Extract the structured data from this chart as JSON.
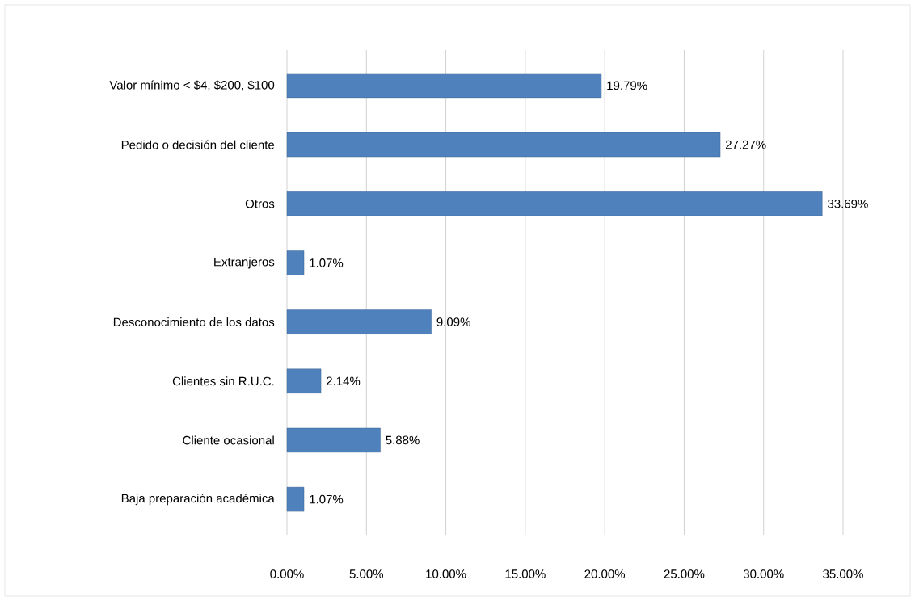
{
  "chart_data": {
    "type": "bar",
    "orientation": "horizontal",
    "categories": [
      "Valor mínimo < $4, $200, $100",
      "Pedido o decisión del cliente",
      "Otros",
      "Extranjeros",
      "Desconocimiento de los datos",
      "Clientes sin R.U.C.",
      "Cliente ocasional",
      "Baja preparación académica"
    ],
    "values": [
      19.79,
      27.27,
      33.69,
      1.07,
      9.09,
      2.14,
      5.88,
      1.07
    ],
    "value_labels": [
      "19.79%",
      "27.27%",
      "33.69%",
      "1.07%",
      "9.09%",
      "2.14%",
      "5.88%",
      "1.07%"
    ],
    "color": "#4f81bd",
    "xlim": [
      0,
      35
    ],
    "xticks": [
      {
        "value": 0,
        "label": "0.00%"
      },
      {
        "value": 5,
        "label": "5.00%"
      },
      {
        "value": 10,
        "label": "10.00%"
      },
      {
        "value": 15,
        "label": "15.00%"
      },
      {
        "value": 20,
        "label": "20.00%"
      },
      {
        "value": 25,
        "label": "25.00%"
      },
      {
        "value": 30,
        "label": "30.00%"
      },
      {
        "value": 35,
        "label": "35.00%"
      }
    ],
    "grid": "x"
  }
}
